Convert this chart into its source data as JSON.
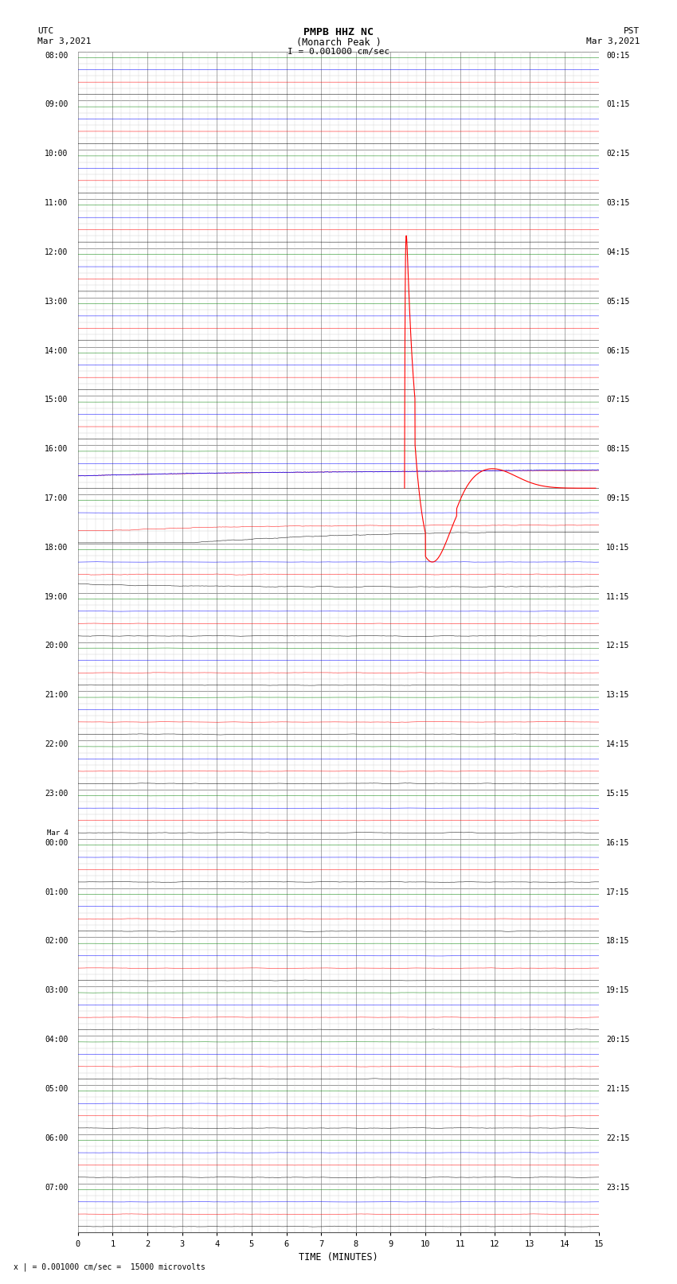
{
  "title_main": "PMPB HHZ NC",
  "title_sub": "(Monarch Peak )",
  "scale_label": "I = 0.001000 cm/sec",
  "bottom_label": "x | = 0.001000 cm/sec =  15000 microvolts",
  "xlabel": "TIME (MINUTES)",
  "left_label_utc": "UTC",
  "left_label_date": "Mar 3,2021",
  "right_label_pst": "PST",
  "right_label_date": "Mar 3,2021",
  "left_times": [
    "08:00",
    "09:00",
    "10:00",
    "11:00",
    "12:00",
    "13:00",
    "14:00",
    "15:00",
    "16:00",
    "17:00",
    "18:00",
    "19:00",
    "20:00",
    "21:00",
    "22:00",
    "23:00",
    "Mar 4",
    "00:00",
    "01:00",
    "02:00",
    "03:00",
    "04:00",
    "05:00",
    "06:00",
    "07:00"
  ],
  "right_times": [
    "00:15",
    "01:15",
    "02:15",
    "03:15",
    "04:15",
    "05:15",
    "06:15",
    "07:15",
    "08:15",
    "09:15",
    "10:15",
    "11:15",
    "12:15",
    "13:15",
    "14:15",
    "15:15",
    "16:15",
    "17:15",
    "18:15",
    "19:15",
    "20:15",
    "21:15",
    "22:15",
    "23:15"
  ],
  "n_rows": 24,
  "minutes_per_row": 15,
  "bg_color": "#ffffff",
  "grid_major_color": "#888888",
  "grid_minor_color": "#cccccc",
  "trace_colors": [
    "black",
    "red",
    "blue",
    "green"
  ],
  "eq_hour_row": 8,
  "eq_minute_in_row": 9.4,
  "quiet_rows_count": 8
}
